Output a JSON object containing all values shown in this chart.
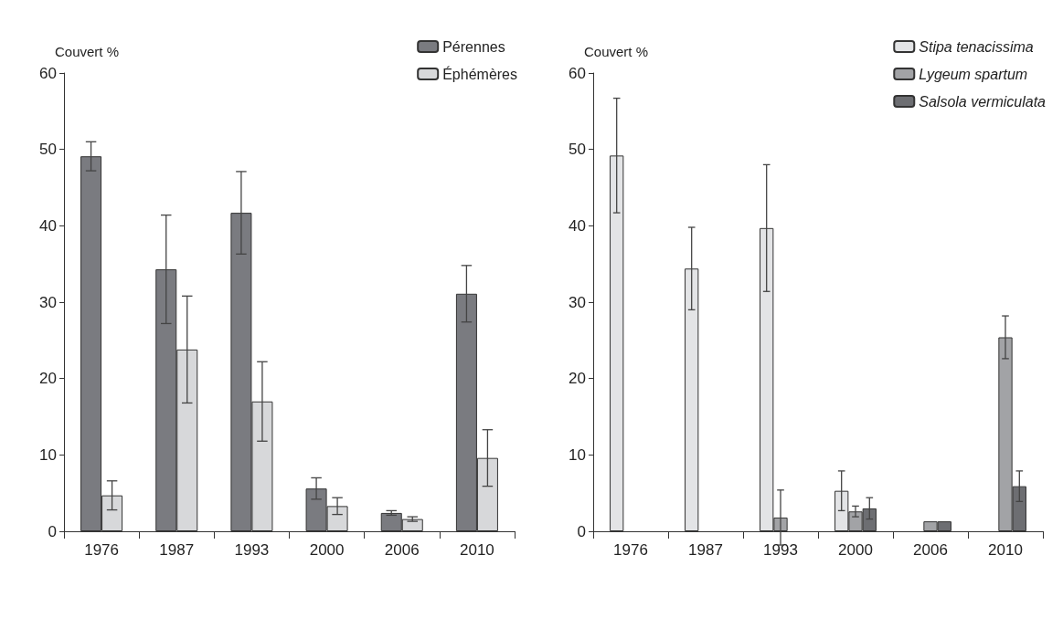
{
  "chart_data": [
    {
      "type": "bar",
      "ylabel": "Couvert %",
      "categories": [
        "1976",
        "1987",
        "1993",
        "2000",
        "2006",
        "2010"
      ],
      "ylim": [
        0,
        60
      ],
      "yticks": [
        0,
        10,
        20,
        30,
        40,
        50,
        60
      ],
      "grid": false,
      "legend": "top right",
      "series": [
        {
          "name": "Pérennes",
          "color": "#7a7b80",
          "values": [
            49.1,
            34.3,
            41.7,
            5.6,
            2.4,
            31.1
          ],
          "errors": [
            1.9,
            7.1,
            5.4,
            1.4,
            0.3,
            3.7
          ]
        },
        {
          "name": "Éphémères",
          "color": "#d7d8da",
          "values": [
            4.7,
            23.8,
            17.0,
            3.3,
            1.6,
            9.6
          ],
          "errors": [
            1.9,
            7.0,
            5.2,
            1.1,
            0.3,
            3.7
          ]
        }
      ]
    },
    {
      "type": "bar",
      "ylabel": "Couvert %",
      "categories": [
        "1976",
        "1987",
        "1993",
        "2000",
        "2006",
        "2010"
      ],
      "ylim": [
        0,
        60
      ],
      "yticks": [
        0,
        10,
        20,
        30,
        40,
        50,
        60
      ],
      "grid": false,
      "legend": "top right",
      "series": [
        {
          "name": "Stipa tenacissima",
          "color": "#e3e4e6",
          "values": [
            49.2,
            34.4,
            39.7,
            5.3,
            null,
            null
          ],
          "errors": [
            7.5,
            5.4,
            8.3,
            2.6,
            null,
            null
          ]
        },
        {
          "name": "Lygeum spartum",
          "color": "#a2a3a6",
          "values": [
            null,
            null,
            1.8,
            2.6,
            1.3,
            25.4
          ],
          "errors": [
            null,
            null,
            3.6,
            0.7,
            null,
            2.8
          ]
        },
        {
          "name": "Salsola vermiculata",
          "color": "#6d6e72",
          "values": [
            null,
            null,
            null,
            3.0,
            1.3,
            5.9
          ],
          "errors": [
            null,
            null,
            null,
            1.4,
            null,
            2.0
          ]
        }
      ]
    }
  ]
}
